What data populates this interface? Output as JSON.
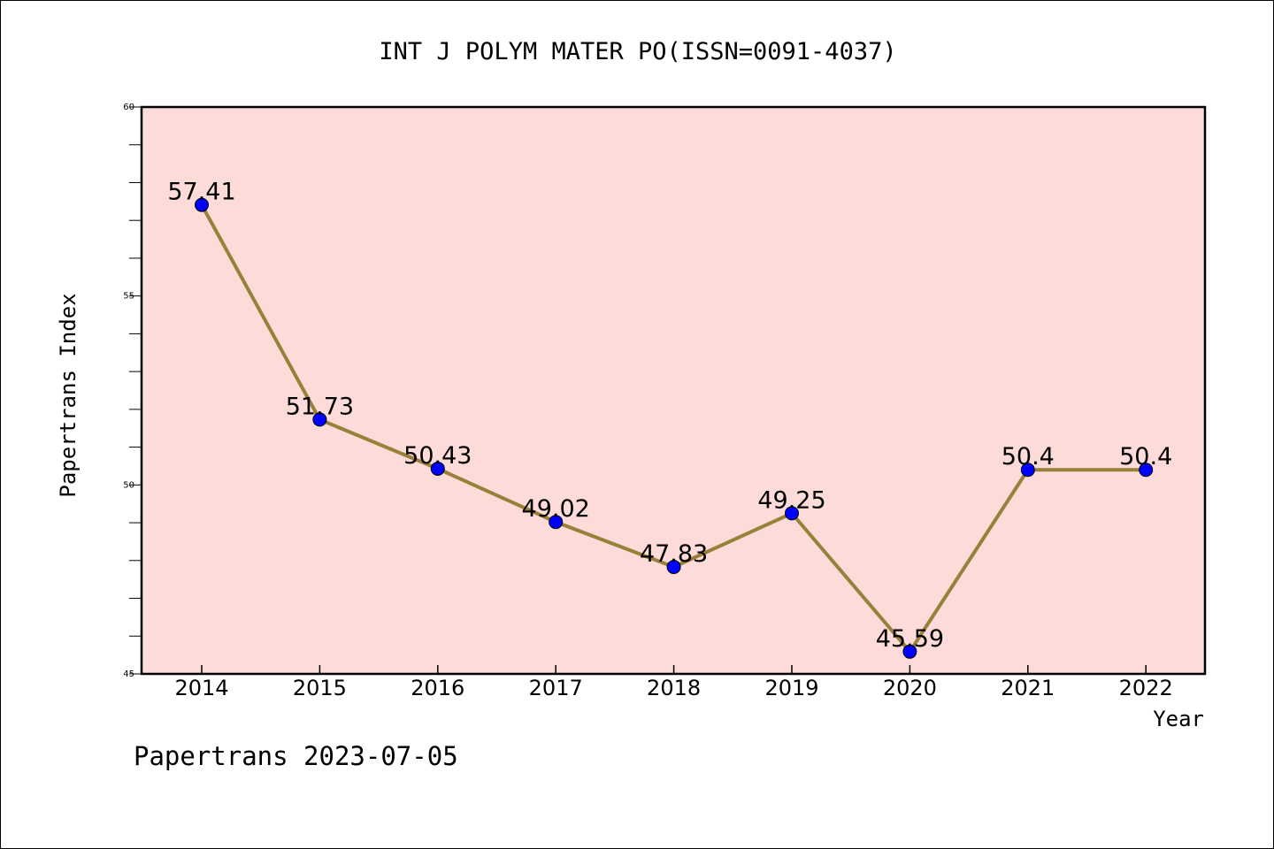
{
  "chart_data": {
    "type": "line",
    "title": "INT J POLYM MATER PO(ISSN=0091-4037)",
    "xlabel": "Year",
    "ylabel": "Papertrans Index",
    "categories": [
      "2014",
      "2015",
      "2016",
      "2017",
      "2018",
      "2019",
      "2020",
      "2021",
      "2022"
    ],
    "values": [
      57.41,
      51.73,
      50.43,
      49.02,
      47.83,
      49.25,
      45.59,
      50.4,
      50.4
    ],
    "data_labels": [
      "57.41",
      "51.73",
      "50.43",
      "49.02",
      "47.83",
      "49.25",
      "45.59",
      "50.4",
      "50.4"
    ],
    "ylim": [
      45,
      60
    ],
    "yticks": [
      "45",
      "50",
      "55",
      "60"
    ],
    "grid": false,
    "legend": "none",
    "footer": "Papertrans 2023-07-05",
    "colors": {
      "plot_background": "#fddbd8",
      "line": "#9a7f3a",
      "marker": "#0000ff"
    }
  }
}
